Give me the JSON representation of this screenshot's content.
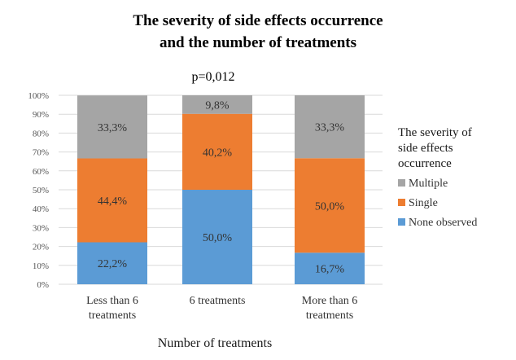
{
  "chart_data": {
    "type": "bar",
    "stacked": true,
    "title_lines": [
      "The severity of side effects occurrence",
      "and the number of treatments"
    ],
    "annotation": "p=0,012",
    "categories": [
      [
        "Less than 6",
        "treatments"
      ],
      [
        "6 treatments"
      ],
      [
        "More than 6",
        "treatments"
      ]
    ],
    "series": [
      {
        "name": "None observed",
        "color": "#5b9bd5",
        "values": [
          22.2,
          50.0,
          16.7
        ],
        "labels": [
          "22,2%",
          "50,0%",
          "16,7%"
        ]
      },
      {
        "name": "Single",
        "color": "#ed7d31",
        "values": [
          44.4,
          40.2,
          50.0
        ],
        "labels": [
          "44,4%",
          "40,2%",
          "50,0%"
        ]
      },
      {
        "name": "Multiple",
        "color": "#a5a5a5",
        "values": [
          33.3,
          9.8,
          33.3
        ],
        "labels": [
          "33,3%",
          "9,8%",
          "33,3%"
        ]
      }
    ],
    "ylim": [
      0,
      100
    ],
    "yticks": [
      "0%",
      "10%",
      "20%",
      "30%",
      "40%",
      "50%",
      "60%",
      "70%",
      "80%",
      "90%",
      "100%"
    ],
    "xlabel": "Number of treatments",
    "ylabel": "",
    "legend": {
      "title_lines": [
        "The severity of",
        "side effects",
        "occurrence"
      ],
      "order": [
        "Multiple",
        "Single",
        "None observed"
      ],
      "position": "right"
    }
  }
}
